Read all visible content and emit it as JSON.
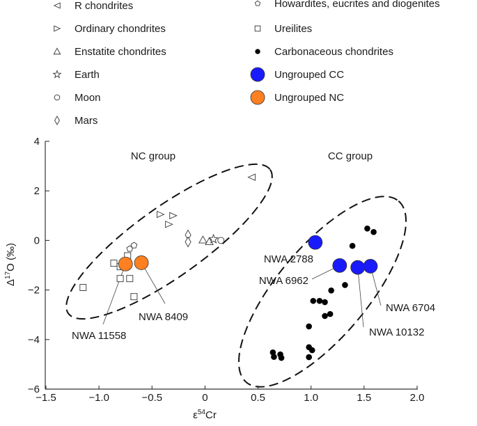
{
  "chart_data": {
    "type": "scatter",
    "xlabel": "ε54Cr",
    "xlabel_parts": {
      "base": "ε",
      "sup": "54",
      "rest": "Cr"
    },
    "ylabel": "Δ17O (‰)",
    "ylabel_parts": {
      "base": "Δ",
      "sup": "17",
      "rest": "O (‰)"
    },
    "xlim": [
      -1.5,
      2.0
    ],
    "ylim": [
      -6,
      4
    ],
    "x_ticks": [
      -1.5,
      -1.0,
      -0.5,
      0,
      0.5,
      1.0,
      1.5,
      2.0
    ],
    "x_tick_labels": [
      "−1.5",
      "−1.0",
      "−0.5",
      "0",
      "0.5",
      "1.0",
      "1.5",
      "2.0"
    ],
    "y_ticks": [
      4,
      2,
      0,
      -2,
      -4,
      -6
    ],
    "y_tick_labels": [
      "4",
      "2",
      "0",
      "−2",
      "−4",
      "−6"
    ],
    "grid": false,
    "legend_position": "top",
    "legend": [
      {
        "label": "R chondrites",
        "marker": "triangle-left"
      },
      {
        "label": "Ordinary chondrites",
        "marker": "triangle-right"
      },
      {
        "label": "Enstatite chondrites",
        "marker": "triangle-up"
      },
      {
        "label": "Earth",
        "marker": "star"
      },
      {
        "label": "Moon",
        "marker": "circle-open"
      },
      {
        "label": "Mars",
        "marker": "diamond"
      },
      {
        "label": "Howardites, eucrites and diogenites",
        "marker": "pentagon"
      },
      {
        "label": "Ureilites",
        "marker": "square"
      },
      {
        "label": "Carbonaceous chondrites",
        "marker": "dot"
      },
      {
        "label": "Ungrouped CC",
        "marker": "big-circle",
        "color": "#1a1aff"
      },
      {
        "label": "Ungrouped NC",
        "marker": "big-circle",
        "color": "#ff8020"
      }
    ],
    "series": [
      {
        "name": "R chondrites",
        "marker": "triangle-left",
        "points": [
          [
            0.44,
            2.55
          ]
        ]
      },
      {
        "name": "Ordinary chondrites",
        "marker": "triangle-right",
        "points": [
          [
            -0.42,
            1.05
          ],
          [
            -0.3,
            1.0
          ],
          [
            -0.34,
            0.65
          ]
        ]
      },
      {
        "name": "Enstatite chondrites",
        "marker": "triangle-up",
        "points": [
          [
            -0.02,
            0.02
          ],
          [
            0.04,
            -0.05
          ]
        ]
      },
      {
        "name": "Earth",
        "marker": "star",
        "points": [
          [
            0.08,
            0.05
          ]
        ]
      },
      {
        "name": "Moon",
        "marker": "circle-open",
        "points": [
          [
            0.15,
            0.0
          ]
        ]
      },
      {
        "name": "Mars",
        "marker": "diamond",
        "points": [
          [
            -0.16,
            0.22
          ],
          [
            -0.16,
            -0.06
          ]
        ]
      },
      {
        "name": "Howardites, eucrites and diogenites",
        "marker": "pentagon",
        "points": [
          [
            -0.71,
            -0.34
          ],
          [
            -0.67,
            -0.2
          ]
        ]
      },
      {
        "name": "Ureilites",
        "marker": "square",
        "points": [
          [
            -0.86,
            -0.92
          ],
          [
            -0.73,
            -0.62
          ],
          [
            -0.8,
            -1.06
          ],
          [
            -0.8,
            -1.54
          ],
          [
            -0.71,
            -1.54
          ],
          [
            -1.15,
            -1.9
          ],
          [
            -0.67,
            -2.27
          ]
        ]
      },
      {
        "name": "Carbonaceous chondrites",
        "marker": "dot",
        "points": [
          [
            1.53,
            0.48
          ],
          [
            1.59,
            0.34
          ],
          [
            1.39,
            -0.22
          ],
          [
            1.32,
            -1.8
          ],
          [
            1.19,
            -2.02
          ],
          [
            1.02,
            -2.44
          ],
          [
            1.08,
            -2.44
          ],
          [
            1.13,
            -2.49
          ],
          [
            1.18,
            -2.97
          ],
          [
            1.13,
            -3.05
          ],
          [
            0.98,
            -3.47
          ],
          [
            0.98,
            -4.31
          ],
          [
            1.01,
            -4.43
          ],
          [
            0.98,
            -4.71
          ],
          [
            0.64,
            -4.52
          ],
          [
            0.65,
            -4.7
          ],
          [
            0.71,
            -4.6
          ],
          [
            0.72,
            -4.74
          ]
        ]
      },
      {
        "name": "Ungrouped CC",
        "marker": "big-circle",
        "color": "#1a1aff",
        "points": [
          [
            1.04,
            -0.08
          ],
          [
            1.27,
            -1.01
          ],
          [
            1.44,
            -1.09
          ],
          [
            1.56,
            -1.04
          ]
        ]
      },
      {
        "name": "Ungrouped NC",
        "marker": "big-circle",
        "color": "#ff8020",
        "points": [
          [
            -0.75,
            -0.95
          ],
          [
            -0.6,
            -0.9
          ]
        ]
      }
    ],
    "annotations": [
      {
        "text": "NC group"
      },
      {
        "text": "CC group"
      },
      {
        "text": "NWA 2788",
        "point": [
          1.04,
          -0.08
        ]
      },
      {
        "text": "NWA 6962",
        "point": [
          1.27,
          -1.01
        ]
      },
      {
        "text": "NWA 10132",
        "point": [
          1.44,
          -1.09
        ]
      },
      {
        "text": "NWA 6704",
        "point": [
          1.56,
          -1.04
        ]
      },
      {
        "text": "NWA 11558",
        "point": [
          -0.75,
          -0.95
        ]
      },
      {
        "text": "NWA 8409",
        "point": [
          -0.6,
          -0.9
        ]
      }
    ],
    "groups": [
      {
        "name": "NC group",
        "shape": "dashed-ellipse"
      },
      {
        "name": "CC group",
        "shape": "dashed-ellipse"
      }
    ]
  }
}
